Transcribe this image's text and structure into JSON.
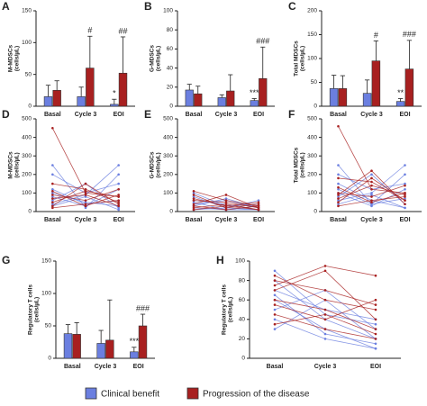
{
  "chart_data": [
    {
      "type": "bar",
      "panel": "A",
      "ylabel": [
        "M-MDSCs",
        "(cells/µL)"
      ],
      "categories": [
        "Basal",
        "Cycle 3",
        "EOI"
      ],
      "series": [
        {
          "name": "Clinical benefit",
          "color": "#6b7fe0",
          "values": [
            15,
            15,
            3
          ],
          "errors": [
            18,
            15,
            8
          ],
          "annotations": [
            null,
            null,
            "*"
          ]
        },
        {
          "name": "Progression of the disease",
          "color": "#a82020",
          "values": [
            25,
            60,
            52
          ],
          "errors": [
            15,
            50,
            57
          ],
          "annotations": [
            null,
            "#",
            "##"
          ]
        }
      ],
      "ylim": [
        0,
        150
      ],
      "yticks": [
        0,
        50,
        100,
        150
      ]
    },
    {
      "type": "bar",
      "panel": "B",
      "ylabel": [
        "G-MDSCs",
        "(cells/µL)"
      ],
      "categories": [
        "Basal",
        "Cycle 3",
        "EOI"
      ],
      "series": [
        {
          "name": "Clinical benefit",
          "color": "#6b7fe0",
          "values": [
            17,
            9,
            6
          ],
          "errors": [
            6,
            3,
            2
          ],
          "annotations": [
            null,
            null,
            "***"
          ]
        },
        {
          "name": "Progression of the disease",
          "color": "#a82020",
          "values": [
            13,
            16,
            29
          ],
          "errors": [
            8,
            17,
            33
          ],
          "annotations": [
            null,
            null,
            "###"
          ]
        }
      ],
      "ylim": [
        0,
        100
      ],
      "yticks": [
        0,
        20,
        40,
        60,
        80,
        100
      ]
    },
    {
      "type": "bar",
      "panel": "C",
      "ylabel": [
        "Total MDSCs",
        "(cells/µL)"
      ],
      "categories": [
        "Basal",
        "Cycle 3",
        "EOI"
      ],
      "series": [
        {
          "name": "Clinical benefit",
          "color": "#6b7fe0",
          "values": [
            37,
            27,
            10
          ],
          "errors": [
            28,
            28,
            6
          ],
          "annotations": [
            null,
            null,
            "**"
          ]
        },
        {
          "name": "Progression of the disease",
          "color": "#a82020",
          "values": [
            37,
            95,
            78
          ],
          "errors": [
            27,
            42,
            60
          ],
          "annotations": [
            null,
            "#",
            "###"
          ]
        }
      ],
      "ylim": [
        0,
        200
      ],
      "yticks": [
        0,
        50,
        100,
        150,
        200
      ]
    },
    {
      "type": "line",
      "panel": "D",
      "ylabel": [
        "M-MDSCs",
        "(cells/µL)"
      ],
      "categories": [
        "Basal",
        "Cycle 3",
        "EOI"
      ],
      "series": [
        {
          "color": "#6b7fe0",
          "values": [
            250,
            20,
            200
          ]
        },
        {
          "color": "#6b7fe0",
          "values": [
            100,
            50,
            30
          ]
        },
        {
          "color": "#6b7fe0",
          "values": [
            60,
            150,
            20
          ]
        },
        {
          "color": "#6b7fe0",
          "values": [
            40,
            90,
            250
          ]
        },
        {
          "color": "#6b7fe0",
          "values": [
            120,
            40,
            60
          ]
        },
        {
          "color": "#6b7fe0",
          "values": [
            30,
            80,
            10
          ]
        },
        {
          "color": "#6b7fe0",
          "values": [
            200,
            100,
            150
          ]
        },
        {
          "color": "#6b7fe0",
          "values": [
            80,
            30,
            120
          ]
        },
        {
          "color": "#a82020",
          "values": [
            450,
            100,
            80
          ]
        },
        {
          "color": "#a82020",
          "values": [
            150,
            120,
            50
          ]
        },
        {
          "color": "#a82020",
          "values": [
            90,
            60,
            120
          ]
        },
        {
          "color": "#a82020",
          "values": [
            50,
            110,
            80
          ]
        },
        {
          "color": "#a82020",
          "values": [
            20,
            40,
            60
          ]
        },
        {
          "color": "#a82020",
          "values": [
            70,
            90,
            30
          ]
        },
        {
          "color": "#a82020",
          "values": [
            110,
            30,
            90
          ]
        },
        {
          "color": "#a82020",
          "values": [
            30,
            150,
            40
          ]
        }
      ],
      "ylim": [
        0,
        500
      ],
      "yticks": [
        0,
        100,
        200,
        300,
        400,
        500
      ]
    },
    {
      "type": "line",
      "panel": "E",
      "ylabel": [
        "G-MDSCs",
        "(cells/µL)"
      ],
      "categories": [
        "Basal",
        "Cycle 3",
        "EOI"
      ],
      "series": [
        {
          "color": "#6b7fe0",
          "values": [
            80,
            20,
            10
          ]
        },
        {
          "color": "#6b7fe0",
          "values": [
            40,
            60,
            20
          ]
        },
        {
          "color": "#6b7fe0",
          "values": [
            100,
            30,
            40
          ]
        },
        {
          "color": "#6b7fe0",
          "values": [
            20,
            10,
            30
          ]
        },
        {
          "color": "#6b7fe0",
          "values": [
            60,
            40,
            10
          ]
        },
        {
          "color": "#6b7fe0",
          "values": [
            30,
            70,
            20
          ]
        },
        {
          "color": "#6b7fe0",
          "values": [
            10,
            20,
            60
          ]
        },
        {
          "color": "#6b7fe0",
          "values": [
            50,
            10,
            10
          ]
        },
        {
          "color": "#a82020",
          "values": [
            110,
            60,
            30
          ]
        },
        {
          "color": "#a82020",
          "values": [
            70,
            30,
            50
          ]
        },
        {
          "color": "#a82020",
          "values": [
            40,
            90,
            20
          ]
        },
        {
          "color": "#a82020",
          "values": [
            20,
            40,
            10
          ]
        },
        {
          "color": "#a82020",
          "values": [
            90,
            20,
            40
          ]
        },
        {
          "color": "#a82020",
          "values": [
            30,
            10,
            30
          ]
        },
        {
          "color": "#a82020",
          "values": [
            60,
            50,
            20
          ]
        },
        {
          "color": "#a82020",
          "values": [
            10,
            30,
            10
          ]
        }
      ],
      "ylim": [
        0,
        500
      ],
      "yticks": [
        0,
        100,
        200,
        300,
        400,
        500
      ]
    },
    {
      "type": "line",
      "panel": "F",
      "ylabel": [
        "Total MDSCs",
        "(cells/µL)"
      ],
      "categories": [
        "Basal",
        "Cycle 3",
        "EOI"
      ],
      "series": [
        {
          "color": "#6b7fe0",
          "values": [
            250,
            40,
            200
          ]
        },
        {
          "color": "#6b7fe0",
          "values": [
            150,
            60,
            20
          ]
        },
        {
          "color": "#6b7fe0",
          "values": [
            80,
            200,
            40
          ]
        },
        {
          "color": "#6b7fe0",
          "values": [
            60,
            100,
            250
          ]
        },
        {
          "color": "#6b7fe0",
          "values": [
            120,
            40,
            70
          ]
        },
        {
          "color": "#6b7fe0",
          "values": [
            40,
            90,
            20
          ]
        },
        {
          "color": "#6b7fe0",
          "values": [
            200,
            120,
            150
          ]
        },
        {
          "color": "#6b7fe0",
          "values": [
            100,
            30,
            120
          ]
        },
        {
          "color": "#a82020",
          "values": [
            460,
            120,
            100
          ]
        },
        {
          "color": "#a82020",
          "values": [
            180,
            160,
            60
          ]
        },
        {
          "color": "#a82020",
          "values": [
            100,
            80,
            140
          ]
        },
        {
          "color": "#a82020",
          "values": [
            70,
            140,
            90
          ]
        },
        {
          "color": "#a82020",
          "values": [
            30,
            60,
            80
          ]
        },
        {
          "color": "#a82020",
          "values": [
            90,
            220,
            40
          ]
        },
        {
          "color": "#a82020",
          "values": [
            130,
            50,
            100
          ]
        },
        {
          "color": "#a82020",
          "values": [
            50,
            180,
            60
          ]
        }
      ],
      "ylim": [
        0,
        500
      ],
      "yticks": [
        0,
        100,
        200,
        300,
        400,
        500
      ]
    },
    {
      "type": "bar",
      "panel": "G",
      "ylabel": [
        "Regulatory T cells",
        "(cells/µL)"
      ],
      "categories": [
        "Basal",
        "Cycle 3",
        "EOI"
      ],
      "series": [
        {
          "name": "Clinical benefit",
          "color": "#6b7fe0",
          "values": [
            38,
            23,
            10
          ],
          "errors": [
            14,
            20,
            7
          ],
          "annotations": [
            null,
            null,
            "***"
          ]
        },
        {
          "name": "Progression of the disease",
          "color": "#a82020",
          "values": [
            37,
            28,
            50
          ],
          "errors": [
            18,
            62,
            18
          ],
          "annotations": [
            null,
            null,
            "###"
          ]
        }
      ],
      "ylim": [
        0,
        150
      ],
      "yticks": [
        0,
        50,
        100,
        150
      ]
    },
    {
      "type": "line",
      "panel": "H",
      "ylabel": [
        "Regulatory T cells",
        "(cells/µL)"
      ],
      "categories": [
        "Basal",
        "Cycle 3",
        "EOI"
      ],
      "series": [
        {
          "color": "#6b7fe0",
          "values": [
            60,
            30,
            10
          ]
        },
        {
          "color": "#6b7fe0",
          "values": [
            80,
            40,
            20
          ]
        },
        {
          "color": "#6b7fe0",
          "values": [
            50,
            70,
            30
          ]
        },
        {
          "color": "#6b7fe0",
          "values": [
            40,
            20,
            10
          ]
        },
        {
          "color": "#6b7fe0",
          "values": [
            70,
            50,
            40
          ]
        },
        {
          "color": "#6b7fe0",
          "values": [
            30,
            60,
            20
          ]
        },
        {
          "color": "#6b7fe0",
          "values": [
            65,
            25,
            15
          ]
        },
        {
          "color": "#6b7fe0",
          "values": [
            90,
            45,
            35
          ]
        },
        {
          "color": "#a82020",
          "values": [
            85,
            60,
            50
          ]
        },
        {
          "color": "#a82020",
          "values": [
            70,
            90,
            40
          ]
        },
        {
          "color": "#a82020",
          "values": [
            55,
            40,
            60
          ]
        },
        {
          "color": "#a82020",
          "values": [
            45,
            30,
            20
          ]
        },
        {
          "color": "#a82020",
          "values": [
            75,
            95,
            85
          ]
        },
        {
          "color": "#a82020",
          "values": [
            60,
            50,
            30
          ]
        },
        {
          "color": "#a82020",
          "values": [
            35,
            45,
            25
          ]
        },
        {
          "color": "#a82020",
          "values": [
            80,
            70,
            55
          ]
        }
      ],
      "ylim": [
        0,
        100
      ],
      "yticks": [
        0,
        20,
        40,
        60,
        80,
        100
      ]
    }
  ]
}
